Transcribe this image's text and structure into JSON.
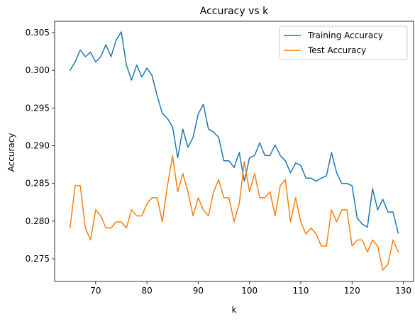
{
  "chart_data": {
    "type": "line",
    "title": "Accuracy vs k",
    "xlabel": "k",
    "ylabel": "Accuracy",
    "xlim": [
      62,
      132
    ],
    "ylim": [
      0.272,
      0.3065
    ],
    "x_ticks": [
      70,
      80,
      90,
      100,
      110,
      120,
      130
    ],
    "x_tick_labels": [
      "70",
      "80",
      "90",
      "100",
      "110",
      "120",
      "130"
    ],
    "y_ticks": [
      0.275,
      0.28,
      0.285,
      0.29,
      0.295,
      0.3,
      0.305
    ],
    "y_tick_labels": [
      "0.275",
      "0.280",
      "0.285",
      "0.290",
      "0.295",
      "0.300",
      "0.305"
    ],
    "grid": false,
    "legend_position": "top-right",
    "x": [
      65,
      66,
      67,
      68,
      69,
      70,
      71,
      72,
      73,
      74,
      75,
      76,
      77,
      78,
      79,
      80,
      81,
      82,
      83,
      84,
      85,
      86,
      87,
      88,
      89,
      90,
      91,
      92,
      93,
      94,
      95,
      96,
      97,
      98,
      99,
      100,
      101,
      102,
      103,
      104,
      105,
      106,
      107,
      108,
      109,
      110,
      111,
      112,
      113,
      114,
      115,
      116,
      117,
      118,
      119,
      120,
      121,
      122,
      123,
      124,
      125,
      126,
      127,
      128,
      129
    ],
    "series": [
      {
        "name": "Training Accuracy",
        "color": "#1f77b4",
        "values": [
          0.3,
          0.3011,
          0.3027,
          0.3018,
          0.3024,
          0.3011,
          0.3018,
          0.3034,
          0.3018,
          0.304,
          0.3051,
          0.3007,
          0.2987,
          0.3007,
          0.2991,
          0.3003,
          0.2993,
          0.2966,
          0.2943,
          0.2936,
          0.2925,
          0.2884,
          0.2922,
          0.2898,
          0.2911,
          0.2942,
          0.2955,
          0.2922,
          0.2918,
          0.2911,
          0.288,
          0.288,
          0.2871,
          0.2891,
          0.2853,
          0.2884,
          0.2887,
          0.2904,
          0.2887,
          0.2887,
          0.2901,
          0.2887,
          0.288,
          0.2864,
          0.2877,
          0.2874,
          0.2857,
          0.2857,
          0.2853,
          0.2857,
          0.286,
          0.2891,
          0.2864,
          0.285,
          0.285,
          0.2847,
          0.2804,
          0.2796,
          0.2792,
          0.2843,
          0.2815,
          0.2829,
          0.2812,
          0.2812,
          0.2784
        ]
      },
      {
        "name": "Test Accuracy",
        "color": "#ff7f0e",
        "values": [
          0.2791,
          0.2847,
          0.2847,
          0.2791,
          0.2775,
          0.2815,
          0.2807,
          0.2791,
          0.2791,
          0.2799,
          0.2799,
          0.2791,
          0.2815,
          0.2807,
          0.2807,
          0.2823,
          0.2831,
          0.2831,
          0.2799,
          0.2847,
          0.2887,
          0.2839,
          0.2863,
          0.2839,
          0.2807,
          0.2831,
          0.2815,
          0.2807,
          0.2839,
          0.2855,
          0.2831,
          0.2831,
          0.2799,
          0.2823,
          0.2879,
          0.2839,
          0.2863,
          0.2831,
          0.2831,
          0.2839,
          0.2807,
          0.2847,
          0.2855,
          0.2799,
          0.2831,
          0.2799,
          0.2783,
          0.2791,
          0.2783,
          0.2767,
          0.2767,
          0.2815,
          0.2799,
          0.2815,
          0.2815,
          0.2767,
          0.2775,
          0.2775,
          0.2759,
          0.2775,
          0.2767,
          0.2735,
          0.2743,
          0.2775,
          0.2759
        ]
      }
    ]
  }
}
